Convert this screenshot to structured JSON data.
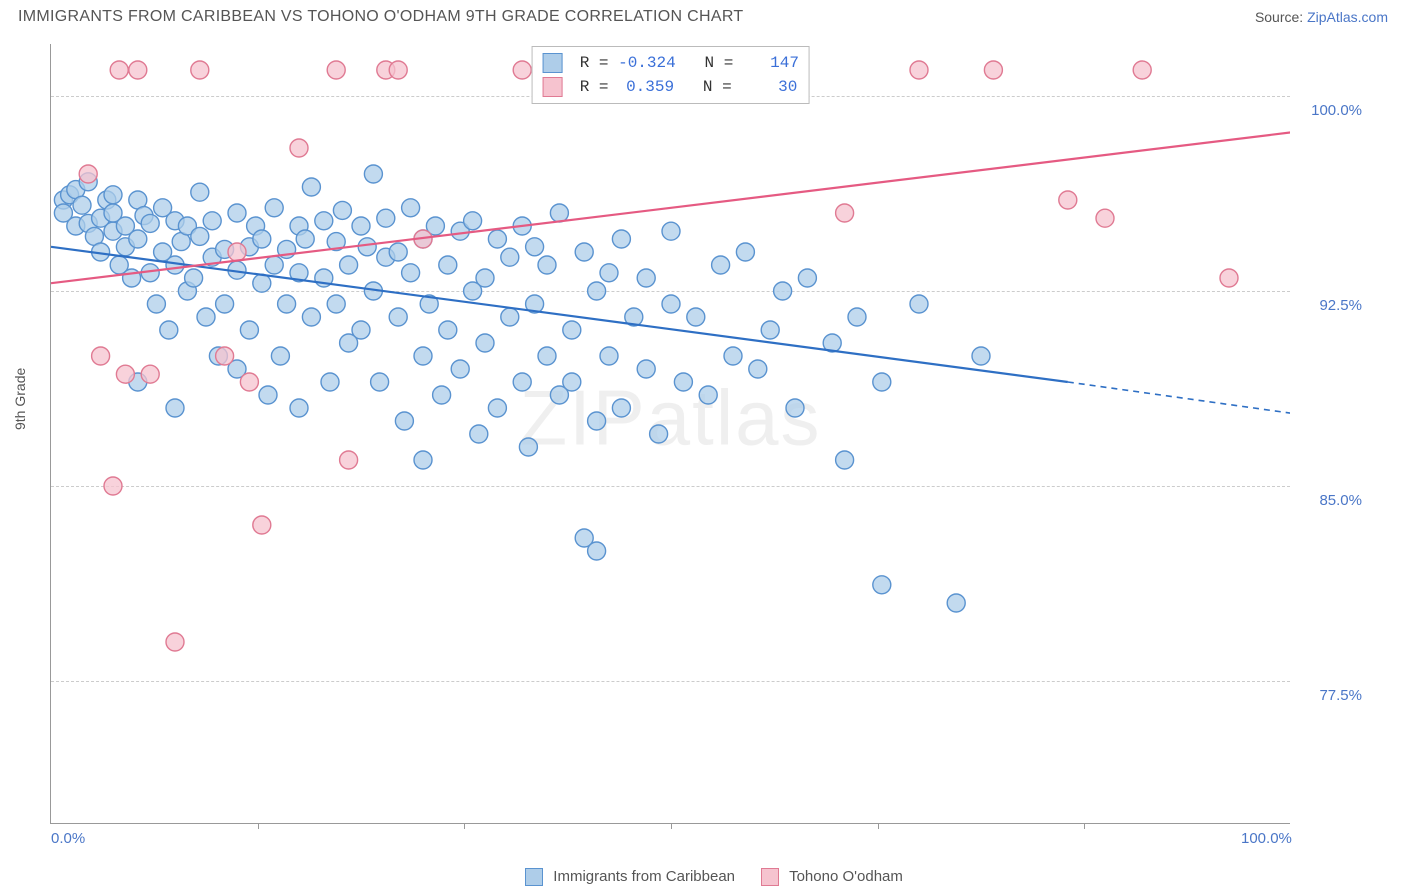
{
  "header": {
    "title": "IMMIGRANTS FROM CARIBBEAN VS TOHONO O'ODHAM 9TH GRADE CORRELATION CHART",
    "source_prefix": "Source: ",
    "source_link": "ZipAtlas.com"
  },
  "chart": {
    "type": "scatter",
    "background_color": "#ffffff",
    "grid_color": "#cccccc",
    "axis_color": "#999999",
    "ylabel": "9th Grade",
    "ylabel_fontsize": 14,
    "xlim": [
      0,
      100
    ],
    "ylim": [
      72,
      102
    ],
    "yticks": [
      {
        "value": 100.0,
        "label": "100.0%"
      },
      {
        "value": 92.5,
        "label": "92.5%"
      },
      {
        "value": 85.0,
        "label": "85.0%"
      },
      {
        "value": 77.5,
        "label": "77.5%"
      }
    ],
    "xticks_major": [
      0,
      100
    ],
    "xticks_minor": [
      16.7,
      33.3,
      50,
      66.7,
      83.3
    ],
    "x_tick_labels": {
      "0": "0.0%",
      "100": "100.0%"
    },
    "watermark": "ZIPatlas",
    "series": [
      {
        "name": "Immigrants from Caribbean",
        "marker_color_fill": "#aecde9",
        "marker_color_stroke": "#5a93d0",
        "marker_radius": 9,
        "line_color": "#2e6fc4",
        "line_width": 2.2,
        "trend": {
          "x1": 0,
          "y1": 94.2,
          "x2": 82,
          "y2": 89.0,
          "x2_ext": 100,
          "y2_ext": 87.8
        },
        "R": "-0.324",
        "N": "147",
        "points": [
          [
            1,
            96
          ],
          [
            1,
            95.5
          ],
          [
            1.5,
            96.2
          ],
          [
            2,
            95
          ],
          [
            2,
            96.4
          ],
          [
            2.5,
            95.8
          ],
          [
            3,
            95.1
          ],
          [
            3,
            96.7
          ],
          [
            3.5,
            94.6
          ],
          [
            4,
            95.3
          ],
          [
            4,
            94
          ],
          [
            4.5,
            96
          ],
          [
            5,
            94.8
          ],
          [
            5,
            95.5
          ],
          [
            5,
            96.2
          ],
          [
            5.5,
            93.5
          ],
          [
            6,
            95
          ],
          [
            6,
            94.2
          ],
          [
            6.5,
            93
          ],
          [
            7,
            96
          ],
          [
            7,
            94.5
          ],
          [
            7,
            89
          ],
          [
            7.5,
            95.4
          ],
          [
            8,
            93.2
          ],
          [
            8,
            95.1
          ],
          [
            8.5,
            92
          ],
          [
            9,
            94
          ],
          [
            9,
            95.7
          ],
          [
            9.5,
            91
          ],
          [
            10,
            93.5
          ],
          [
            10,
            95.2
          ],
          [
            10,
            88
          ],
          [
            10.5,
            94.4
          ],
          [
            11,
            92.5
          ],
          [
            11,
            95
          ],
          [
            11.5,
            93
          ],
          [
            12,
            94.6
          ],
          [
            12,
            96.3
          ],
          [
            12.5,
            91.5
          ],
          [
            13,
            93.8
          ],
          [
            13,
            95.2
          ],
          [
            13.5,
            90
          ],
          [
            14,
            94.1
          ],
          [
            14,
            92
          ],
          [
            15,
            95.5
          ],
          [
            15,
            93.3
          ],
          [
            15,
            89.5
          ],
          [
            16,
            94.2
          ],
          [
            16,
            91
          ],
          [
            16.5,
            95
          ],
          [
            17,
            92.8
          ],
          [
            17,
            94.5
          ],
          [
            17.5,
            88.5
          ],
          [
            18,
            93.5
          ],
          [
            18,
            95.7
          ],
          [
            18.5,
            90
          ],
          [
            19,
            94.1
          ],
          [
            19,
            92
          ],
          [
            20,
            95
          ],
          [
            20,
            93.2
          ],
          [
            20,
            88
          ],
          [
            20.5,
            94.5
          ],
          [
            21,
            96.5
          ],
          [
            21,
            91.5
          ],
          [
            22,
            93
          ],
          [
            22,
            95.2
          ],
          [
            22.5,
            89
          ],
          [
            23,
            94.4
          ],
          [
            23,
            92
          ],
          [
            23.5,
            95.6
          ],
          [
            24,
            90.5
          ],
          [
            24,
            93.5
          ],
          [
            25,
            95
          ],
          [
            25,
            91
          ],
          [
            25.5,
            94.2
          ],
          [
            26,
            92.5
          ],
          [
            26,
            97
          ],
          [
            26.5,
            89
          ],
          [
            27,
            93.8
          ],
          [
            27,
            95.3
          ],
          [
            28,
            91.5
          ],
          [
            28,
            94
          ],
          [
            28.5,
            87.5
          ],
          [
            29,
            93.2
          ],
          [
            29,
            95.7
          ],
          [
            30,
            90
          ],
          [
            30,
            94.5
          ],
          [
            30,
            86
          ],
          [
            30.5,
            92
          ],
          [
            31,
            95
          ],
          [
            31.5,
            88.5
          ],
          [
            32,
            93.5
          ],
          [
            32,
            91
          ],
          [
            33,
            94.8
          ],
          [
            33,
            89.5
          ],
          [
            34,
            92.5
          ],
          [
            34,
            95.2
          ],
          [
            34.5,
            87
          ],
          [
            35,
            93
          ],
          [
            35,
            90.5
          ],
          [
            36,
            94.5
          ],
          [
            36,
            88
          ],
          [
            37,
            91.5
          ],
          [
            37,
            93.8
          ],
          [
            38,
            89
          ],
          [
            38,
            95
          ],
          [
            38.5,
            86.5
          ],
          [
            39,
            92
          ],
          [
            39,
            94.2
          ],
          [
            40,
            90
          ],
          [
            40,
            93.5
          ],
          [
            41,
            88.5
          ],
          [
            41,
            95.5
          ],
          [
            42,
            91
          ],
          [
            42,
            89
          ],
          [
            43,
            94
          ],
          [
            43,
            83
          ],
          [
            44,
            92.5
          ],
          [
            44,
            87.5
          ],
          [
            44,
            82.5
          ],
          [
            45,
            93.2
          ],
          [
            45,
            90
          ],
          [
            46,
            94.5
          ],
          [
            46,
            88
          ],
          [
            47,
            91.5
          ],
          [
            48,
            89.5
          ],
          [
            48,
            93
          ],
          [
            49,
            87
          ],
          [
            50,
            92
          ],
          [
            50,
            94.8
          ],
          [
            51,
            89
          ],
          [
            52,
            91.5
          ],
          [
            53,
            88.5
          ],
          [
            54,
            93.5
          ],
          [
            55,
            90
          ],
          [
            56,
            94
          ],
          [
            57,
            89.5
          ],
          [
            58,
            91
          ],
          [
            59,
            92.5
          ],
          [
            60,
            88
          ],
          [
            61,
            93
          ],
          [
            63,
            90.5
          ],
          [
            64,
            86
          ],
          [
            65,
            91.5
          ],
          [
            67,
            89
          ],
          [
            67,
            81.2
          ],
          [
            70,
            92
          ],
          [
            73,
            80.5
          ],
          [
            75,
            90
          ]
        ]
      },
      {
        "name": "Tohono O'odham",
        "marker_color_fill": "#f6c3cf",
        "marker_color_stroke": "#e07a93",
        "marker_radius": 9,
        "line_color": "#e55a82",
        "line_width": 2.2,
        "trend": {
          "x1": 0,
          "y1": 92.8,
          "x2": 100,
          "y2": 98.6
        },
        "R": "0.359",
        "N": "30",
        "points": [
          [
            3,
            97
          ],
          [
            4,
            90
          ],
          [
            5,
            85
          ],
          [
            5.5,
            101
          ],
          [
            6,
            89.3
          ],
          [
            7,
            101
          ],
          [
            8,
            89.3
          ],
          [
            10,
            79
          ],
          [
            12,
            101
          ],
          [
            14,
            90
          ],
          [
            15,
            94
          ],
          [
            16,
            89
          ],
          [
            17,
            83.5
          ],
          [
            20,
            98
          ],
          [
            23,
            101
          ],
          [
            24,
            86
          ],
          [
            27,
            101
          ],
          [
            28,
            101
          ],
          [
            30,
            94.5
          ],
          [
            38,
            101
          ],
          [
            45,
            101
          ],
          [
            52,
            101
          ],
          [
            58,
            101
          ],
          [
            64,
            95.5
          ],
          [
            70,
            101
          ],
          [
            76,
            101
          ],
          [
            82,
            96
          ],
          [
            85,
            95.3
          ],
          [
            88,
            101
          ],
          [
            95,
            93
          ]
        ]
      }
    ],
    "bottom_legend": [
      {
        "label": "Immigrants from Caribbean",
        "fill": "#aecde9",
        "stroke": "#5a93d0"
      },
      {
        "label": "Tohono O'odham",
        "fill": "#f6c3cf",
        "stroke": "#e07a93"
      }
    ]
  }
}
